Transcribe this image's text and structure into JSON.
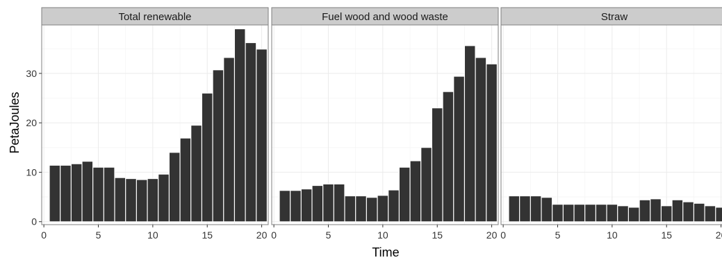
{
  "chart_data": {
    "type": "bar",
    "xlabel": "Time",
    "ylabel": "PetaJoules",
    "xlim": [
      -0.2,
      20.6
    ],
    "ylim": [
      -0.6,
      39.8
    ],
    "x_ticks": [
      0,
      5,
      10,
      15,
      20
    ],
    "y_ticks": [
      0,
      10,
      20,
      30
    ],
    "x_tick_labels": [
      "0",
      "5",
      "10",
      "15",
      "20"
    ],
    "y_tick_labels": [
      "0",
      "10",
      "20",
      "30"
    ],
    "grid": true,
    "legend": "none",
    "colors": {
      "bar": "#333333",
      "panel_background": "#ffffff",
      "grid": "#ebebeb",
      "strip_background": "#cccccc",
      "panel_border": "#7f7f7f"
    },
    "x": [
      1,
      2,
      3,
      4,
      5,
      6,
      7,
      8,
      9,
      10,
      11,
      12,
      13,
      14,
      15,
      16,
      17,
      18,
      19,
      20
    ],
    "panels": [
      {
        "title": "Total renewable",
        "values": [
          11.4,
          11.4,
          11.7,
          12.2,
          11.0,
          11.0,
          8.9,
          8.7,
          8.5,
          8.7,
          9.6,
          14.0,
          16.9,
          19.5,
          26.0,
          30.7,
          33.2,
          39.0,
          36.2,
          34.9
        ]
      },
      {
        "title": "Fuel wood and wood waste",
        "values": [
          6.3,
          6.3,
          6.6,
          7.3,
          7.6,
          7.6,
          5.2,
          5.2,
          4.9,
          5.3,
          6.4,
          11.0,
          12.3,
          15.0,
          23.0,
          26.3,
          29.4,
          35.6,
          33.2,
          31.9
        ]
      },
      {
        "title": "Straw",
        "values": [
          5.2,
          5.2,
          5.2,
          4.9,
          3.5,
          3.5,
          3.5,
          3.5,
          3.5,
          3.5,
          3.2,
          2.9,
          4.4,
          4.6,
          3.2,
          4.4,
          4.0,
          3.7,
          3.2,
          2.9
        ]
      }
    ]
  }
}
